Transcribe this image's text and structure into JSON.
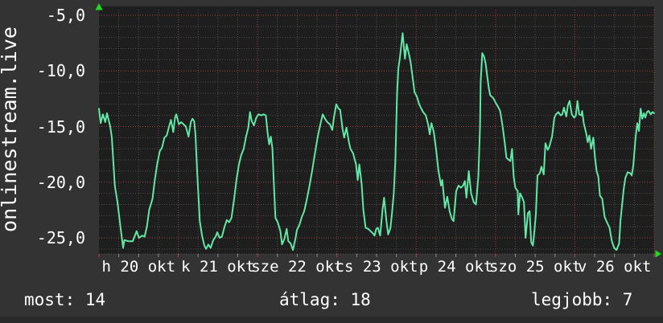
{
  "page": {
    "background": "#333333",
    "footer_strip_color": "#2a2a2a",
    "text_color": "#ffffff"
  },
  "branding": {
    "watermark": "onlinestream.live"
  },
  "stats": {
    "most": "most: 14",
    "atlag": "átlag: 18",
    "legjobb": "legjobb: 7"
  },
  "chart_data": {
    "type": "line",
    "title": "",
    "xlabel": "",
    "ylabel": "",
    "plot_bg": "#1e1e1e",
    "arrow_color": "#1edd1e",
    "legend": "none",
    "grid": {
      "on": true,
      "minor_color": "#4d4d4d",
      "major_color": "#96413f",
      "tick_minor_color": "#8a8a8a",
      "tick_major_color": "#b04a4a"
    },
    "y_axis": {
      "min": -26.4,
      "max": -4.2,
      "minor_step": 1,
      "major_ticks": [
        -5,
        -10,
        -15,
        -20,
        -25
      ],
      "tick_labels": [
        "-5,0",
        "-10,0",
        "-15,0",
        "-20,0",
        "-25,0"
      ]
    },
    "x_axis": {
      "unit": "hours",
      "min": 0,
      "max": 168,
      "minor_step": 6,
      "major_step": 24,
      "day_labels": [
        "h 20 okt",
        "k 21 okt",
        "sze 22 okt",
        "cs 23 okt",
        "p 24 okt",
        "szo 25 okt",
        "v 26 okt"
      ]
    },
    "series": [
      {
        "color": "#63e6a7",
        "points": [
          [
            0,
            -13.4
          ],
          [
            0.5,
            -14.7
          ],
          [
            1.2,
            -13.9
          ],
          [
            1.9,
            -14.6
          ],
          [
            2.4,
            -13.8
          ],
          [
            3.4,
            -15
          ],
          [
            3.9,
            -16
          ],
          [
            4.8,
            -20.3
          ],
          [
            5.6,
            -21.8
          ],
          [
            6.5,
            -24
          ],
          [
            7.3,
            -25.9
          ],
          [
            7.7,
            -25.2
          ],
          [
            8.9,
            -25.3
          ],
          [
            10.2,
            -25.3
          ],
          [
            11.4,
            -24.4
          ],
          [
            12.1,
            -25
          ],
          [
            13.1,
            -24.8
          ],
          [
            13.8,
            -24.9
          ],
          [
            14.5,
            -24
          ],
          [
            15.2,
            -22.5
          ],
          [
            16.2,
            -21.5
          ],
          [
            16.9,
            -19.8
          ],
          [
            17.6,
            -18.4
          ],
          [
            18.4,
            -17.2
          ],
          [
            19.1,
            -16.9
          ],
          [
            19.8,
            -16
          ],
          [
            20.5,
            -15.8
          ],
          [
            21.3,
            -14.9
          ],
          [
            21.8,
            -14.4
          ],
          [
            22.5,
            -15.5
          ],
          [
            23,
            -14.2
          ],
          [
            23.4,
            -13.9
          ],
          [
            24.2,
            -14.8
          ],
          [
            24.9,
            -14.6
          ],
          [
            25.6,
            -14.8
          ],
          [
            26.3,
            -15
          ],
          [
            27.1,
            -15.9
          ],
          [
            27.8,
            -14.6
          ],
          [
            28.3,
            -14.3
          ],
          [
            28.8,
            -14.5
          ],
          [
            29.2,
            -15.7
          ],
          [
            29.7,
            -19
          ],
          [
            30.5,
            -23.5
          ],
          [
            31.2,
            -24.8
          ],
          [
            31.9,
            -25.7
          ],
          [
            32.4,
            -26
          ],
          [
            33.1,
            -25.6
          ],
          [
            33.8,
            -25.9
          ],
          [
            34.6,
            -25.2
          ],
          [
            35.3,
            -24.9
          ],
          [
            35.8,
            -24.5
          ],
          [
            36.5,
            -25
          ],
          [
            37.2,
            -24.9
          ],
          [
            38,
            -24
          ],
          [
            38.7,
            -23.4
          ],
          [
            39.4,
            -23.6
          ],
          [
            40.1,
            -23.2
          ],
          [
            40.9,
            -21.5
          ],
          [
            41.6,
            -19.8
          ],
          [
            42.3,
            -18.5
          ],
          [
            43,
            -17.6
          ],
          [
            43.8,
            -17
          ],
          [
            44.5,
            -15.9
          ],
          [
            45.2,
            -15.1
          ],
          [
            45.7,
            -13.7
          ],
          [
            46.2,
            -14.5
          ],
          [
            46.9,
            -14.9
          ],
          [
            47.6,
            -14.2
          ],
          [
            48.3,
            -13.9
          ],
          [
            49.1,
            -14
          ],
          [
            49.8,
            -13.9
          ],
          [
            50.5,
            -14
          ],
          [
            51,
            -15.5
          ],
          [
            51.5,
            -16.6
          ],
          [
            52,
            -15.9
          ],
          [
            52.5,
            -17
          ],
          [
            52.9,
            -20
          ],
          [
            53.4,
            -23.2
          ],
          [
            54.1,
            -23.6
          ],
          [
            54.9,
            -24.4
          ],
          [
            55.4,
            -25.6
          ],
          [
            56.1,
            -25.1
          ],
          [
            56.8,
            -24.2
          ],
          [
            57.3,
            -25.3
          ],
          [
            58,
            -25.5
          ],
          [
            58.7,
            -26.1
          ],
          [
            59.5,
            -25
          ],
          [
            59.9,
            -24.3
          ],
          [
            60.7,
            -23.8
          ],
          [
            61.4,
            -23.1
          ],
          [
            62.1,
            -22.6
          ],
          [
            62.8,
            -21.7
          ],
          [
            63.6,
            -20.5
          ],
          [
            64.5,
            -19
          ],
          [
            65.3,
            -17.5
          ],
          [
            66.2,
            -15.9
          ],
          [
            67,
            -14.8
          ],
          [
            67.7,
            -13.9
          ],
          [
            68.4,
            -14.3
          ],
          [
            69.1,
            -14.6
          ],
          [
            69.9,
            -14.8
          ],
          [
            70.6,
            -15.3
          ],
          [
            71.1,
            -14.2
          ],
          [
            71.8,
            -13
          ],
          [
            72.5,
            -13.4
          ],
          [
            73,
            -13.5
          ],
          [
            73.7,
            -15.2
          ],
          [
            74.2,
            -16
          ],
          [
            74.9,
            -15.1
          ],
          [
            75.7,
            -16.5
          ],
          [
            76.1,
            -17
          ],
          [
            76.9,
            -17.4
          ],
          [
            77.8,
            -18.4
          ],
          [
            78.3,
            -19.8
          ],
          [
            78.8,
            -18.4
          ],
          [
            79.5,
            -20.2
          ],
          [
            80,
            -22.5
          ],
          [
            80.7,
            -24.1
          ],
          [
            81.5,
            -24.2
          ],
          [
            82.2,
            -24.4
          ],
          [
            82.9,
            -24.6
          ],
          [
            83.4,
            -24.8
          ],
          [
            83.9,
            -24.2
          ],
          [
            84.4,
            -24.1
          ],
          [
            85.1,
            -24.8
          ],
          [
            85.8,
            -22.5
          ],
          [
            86.3,
            -21.4
          ],
          [
            87,
            -23.5
          ],
          [
            87.5,
            -24.7
          ],
          [
            88.2,
            -24.1
          ],
          [
            88.7,
            -22.7
          ],
          [
            89.2,
            -21
          ],
          [
            89.7,
            -18
          ],
          [
            90.2,
            -12
          ],
          [
            90.6,
            -9.8
          ],
          [
            91.1,
            -8.7
          ],
          [
            91.9,
            -6.6
          ],
          [
            92.6,
            -8.9
          ],
          [
            93.1,
            -7.6
          ],
          [
            93.8,
            -8.5
          ],
          [
            94.3,
            -9.2
          ],
          [
            95,
            -10.8
          ],
          [
            95.5,
            -11.9
          ],
          [
            96.2,
            -12.3
          ],
          [
            96.9,
            -13
          ],
          [
            97.4,
            -13.3
          ],
          [
            98.1,
            -13.7
          ],
          [
            98.9,
            -14
          ],
          [
            99.6,
            -14.8
          ],
          [
            100.1,
            -15.7
          ],
          [
            100.6,
            -14.7
          ],
          [
            101.3,
            -15.5
          ],
          [
            102,
            -17
          ],
          [
            102.7,
            -18.9
          ],
          [
            103.5,
            -20.3
          ],
          [
            103.9,
            -19.8
          ],
          [
            104.7,
            -22.3
          ],
          [
            105.4,
            -21.3
          ],
          [
            106.1,
            -22.6
          ],
          [
            106.8,
            -23.3
          ],
          [
            107.3,
            -23.5
          ],
          [
            108.1,
            -20.8
          ],
          [
            108.8,
            -20.3
          ],
          [
            109.5,
            -20.5
          ],
          [
            110.2,
            -20.3
          ],
          [
            110.7,
            -19.9
          ],
          [
            111.2,
            -21.4
          ],
          [
            111.9,
            -19
          ],
          [
            112.6,
            -21
          ],
          [
            113.4,
            -21.8
          ],
          [
            114.1,
            -22
          ],
          [
            114.8,
            -19.5
          ],
          [
            115.3,
            -15
          ],
          [
            115.5,
            -11
          ],
          [
            116,
            -8.4
          ],
          [
            116.5,
            -8.7
          ],
          [
            117,
            -9.3
          ],
          [
            117.5,
            -10.5
          ],
          [
            118,
            -11.6
          ],
          [
            118.4,
            -12.2
          ],
          [
            119.2,
            -12.4
          ],
          [
            119.6,
            -12.6
          ],
          [
            120.1,
            -12.9
          ],
          [
            120.9,
            -13.3
          ],
          [
            121.4,
            -13.6
          ],
          [
            122.1,
            -14.9
          ],
          [
            122.8,
            -16.5
          ],
          [
            123.3,
            -17.8
          ],
          [
            124,
            -18
          ],
          [
            124.5,
            -18.1
          ],
          [
            125,
            -17
          ],
          [
            125.5,
            -19.5
          ],
          [
            126,
            -20.5
          ],
          [
            126.7,
            -20.8
          ],
          [
            126.9,
            -22.9
          ],
          [
            127.4,
            -21
          ],
          [
            128.1,
            -21.4
          ],
          [
            128.6,
            -21.8
          ],
          [
            129.1,
            -25
          ],
          [
            129.8,
            -22.8
          ],
          [
            130.3,
            -22.6
          ],
          [
            130.8,
            -25.4
          ],
          [
            131.3,
            -25.7
          ],
          [
            131.7,
            -24.6
          ],
          [
            132.2,
            -22.9
          ],
          [
            132.7,
            -19.4
          ],
          [
            133.4,
            -19.2
          ],
          [
            133.9,
            -18.6
          ],
          [
            134.6,
            -19.3
          ],
          [
            135.1,
            -16.5
          ],
          [
            135.8,
            -17.1
          ],
          [
            136.3,
            -16.8
          ],
          [
            137.1,
            -15.9
          ],
          [
            137.8,
            -14.2
          ],
          [
            138.3,
            -13.9
          ],
          [
            139,
            -13.7
          ],
          [
            139.7,
            -14
          ],
          [
            140.2,
            -13.9
          ],
          [
            140.7,
            -13.3
          ],
          [
            141.4,
            -14.1
          ],
          [
            141.9,
            -13.1
          ],
          [
            142.4,
            -12.7
          ],
          [
            143.1,
            -13.9
          ],
          [
            143.8,
            -14.2
          ],
          [
            144.3,
            -14
          ],
          [
            144.8,
            -12.7
          ],
          [
            145.3,
            -13.9
          ],
          [
            146,
            -14
          ],
          [
            146.2,
            -13.6
          ],
          [
            146.7,
            -14.7
          ],
          [
            147.5,
            -15.7
          ],
          [
            147.9,
            -16.4
          ],
          [
            148.4,
            -15.8
          ],
          [
            148.9,
            -17
          ],
          [
            149.6,
            -16
          ],
          [
            150.1,
            -17.8
          ],
          [
            150.6,
            -19
          ],
          [
            151.1,
            -19.5
          ],
          [
            151.6,
            -21.2
          ],
          [
            152.3,
            -21.5
          ],
          [
            153,
            -23.1
          ],
          [
            153.7,
            -23.6
          ],
          [
            154.5,
            -24.1
          ],
          [
            155.2,
            -25.3
          ],
          [
            155.9,
            -25.9
          ],
          [
            156.6,
            -26.1
          ],
          [
            157.4,
            -25.5
          ],
          [
            157.8,
            -23.5
          ],
          [
            158.3,
            -22
          ],
          [
            158.8,
            -20.6
          ],
          [
            159.3,
            -19.6
          ],
          [
            160,
            -19.1
          ],
          [
            160.8,
            -19.2
          ],
          [
            161.2,
            -19.4
          ],
          [
            161.7,
            -18.5
          ],
          [
            162.4,
            -15.9
          ],
          [
            162.9,
            -14.7
          ],
          [
            163.4,
            -15.4
          ],
          [
            163.9,
            -13.4
          ],
          [
            164.4,
            -14.3
          ],
          [
            164.9,
            -13.8
          ],
          [
            165.3,
            -14.2
          ],
          [
            165.8,
            -13.7
          ],
          [
            166.3,
            -13.6
          ],
          [
            167,
            -13.9
          ],
          [
            167.5,
            -13.7
          ],
          [
            168,
            -13.8
          ]
        ]
      }
    ]
  }
}
